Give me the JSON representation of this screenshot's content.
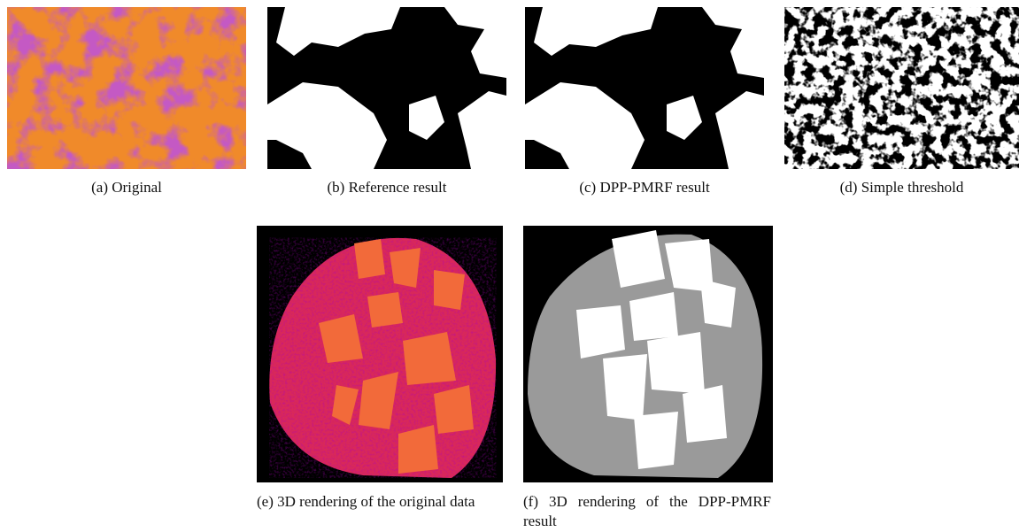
{
  "figure": {
    "subfigures": [
      {
        "label": "(a)",
        "caption": "Original"
      },
      {
        "label": "(b)",
        "caption": "Reference result"
      },
      {
        "label": "(c)",
        "caption": "DPP-PMRF result"
      },
      {
        "label": "(d)",
        "caption": "Simple threshold"
      },
      {
        "label": "(e)",
        "caption": "3D rendering of the original data"
      },
      {
        "label": "(f)",
        "caption": "3D rendering of the DPP-PMRF result"
      }
    ]
  }
}
